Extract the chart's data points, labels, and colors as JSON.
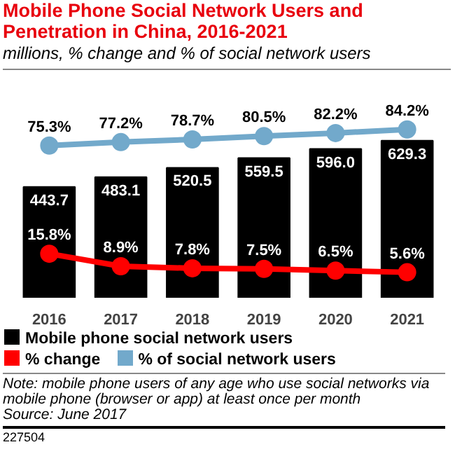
{
  "chart_data": {
    "type": "bar",
    "title": "Mobile Phone Social Network Users and Penetration in China, 2016-2021",
    "subtitle": "millions, % change and % of social network users",
    "categories": [
      "2016",
      "2017",
      "2018",
      "2019",
      "2020",
      "2021"
    ],
    "series": [
      {
        "name": "Mobile phone social network users",
        "color": "#000000",
        "values": [
          443.7,
          483.1,
          520.5,
          559.5,
          596.0,
          629.3
        ],
        "value_labels": [
          "443.7",
          "483.1",
          "520.5",
          "559.5",
          "596.0",
          "629.3"
        ]
      },
      {
        "name": "% change",
        "type": "line",
        "axis": "y2",
        "color": "#ff0000",
        "values": [
          15.8,
          8.9,
          7.8,
          7.5,
          6.5,
          5.6
        ],
        "value_labels": [
          "15.8%",
          "8.9%",
          "7.8%",
          "7.5%",
          "6.5%",
          "5.6%"
        ]
      },
      {
        "name": "% of social network users",
        "type": "line",
        "axis": "y2",
        "color": "#72a9cb",
        "values": [
          75.3,
          77.2,
          78.7,
          80.5,
          82.2,
          84.2
        ],
        "value_labels": [
          "75.3%",
          "77.2%",
          "78.7%",
          "80.5%",
          "82.2%",
          "84.2%"
        ]
      }
    ],
    "marker": "circle",
    "grid": false,
    "legend": "bottom",
    "tick_labels": "x",
    "annotations": [
      "Note: mobile phone users of any age who use social networks via mobile phone (browser or app) at least once per month",
      "Source: June 2017",
      "227504"
    ]
  }
}
